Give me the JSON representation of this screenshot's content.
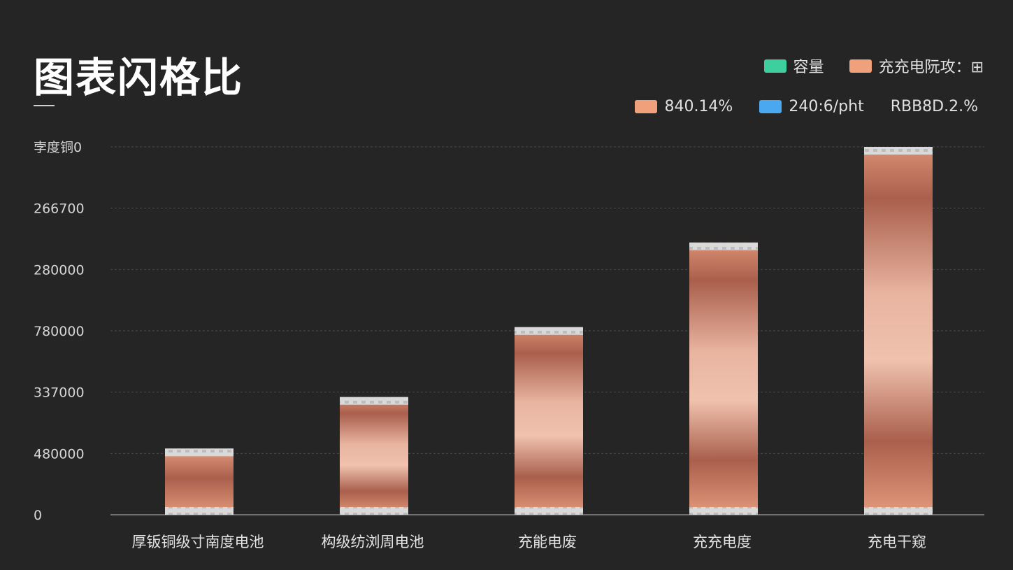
{
  "title": "图表闪格比",
  "colors": {
    "background": "#252526",
    "grid": "#4a4a4a",
    "axis": "#8a8a8a",
    "bar_light": "#e9b39c",
    "bar_dark": "#a95f4c",
    "cap": "#d8d8d8"
  },
  "legend": {
    "row1": [
      {
        "label": "容量",
        "color": "#3ecf9f"
      },
      {
        "label": "充充电阮攻：⊞",
        "color": "#f0a07a"
      }
    ],
    "row2": [
      {
        "label": "840.14%",
        "color": "#f0a07a"
      },
      {
        "label": "240:6/pht",
        "color": "#4aa8f0"
      },
      {
        "label": "RBB8D.2.%",
        "color": ""
      }
    ]
  },
  "chart_data": {
    "type": "bar",
    "title": "图表闪格比",
    "categories": [
      "厚钣铜级寸南度电池",
      "构级纺浏周电池",
      "充能电废",
      "充充电度",
      "充电干窥"
    ],
    "values": [
      0.18,
      0.32,
      0.51,
      0.74,
      1.0
    ],
    "y_tick_labels": [
      "0",
      "480000",
      "337000",
      "780000",
      "280000",
      "266700",
      "孛度铜0"
    ],
    "ylim": [
      0,
      1
    ],
    "grid": true,
    "legend_position": "top-right"
  }
}
